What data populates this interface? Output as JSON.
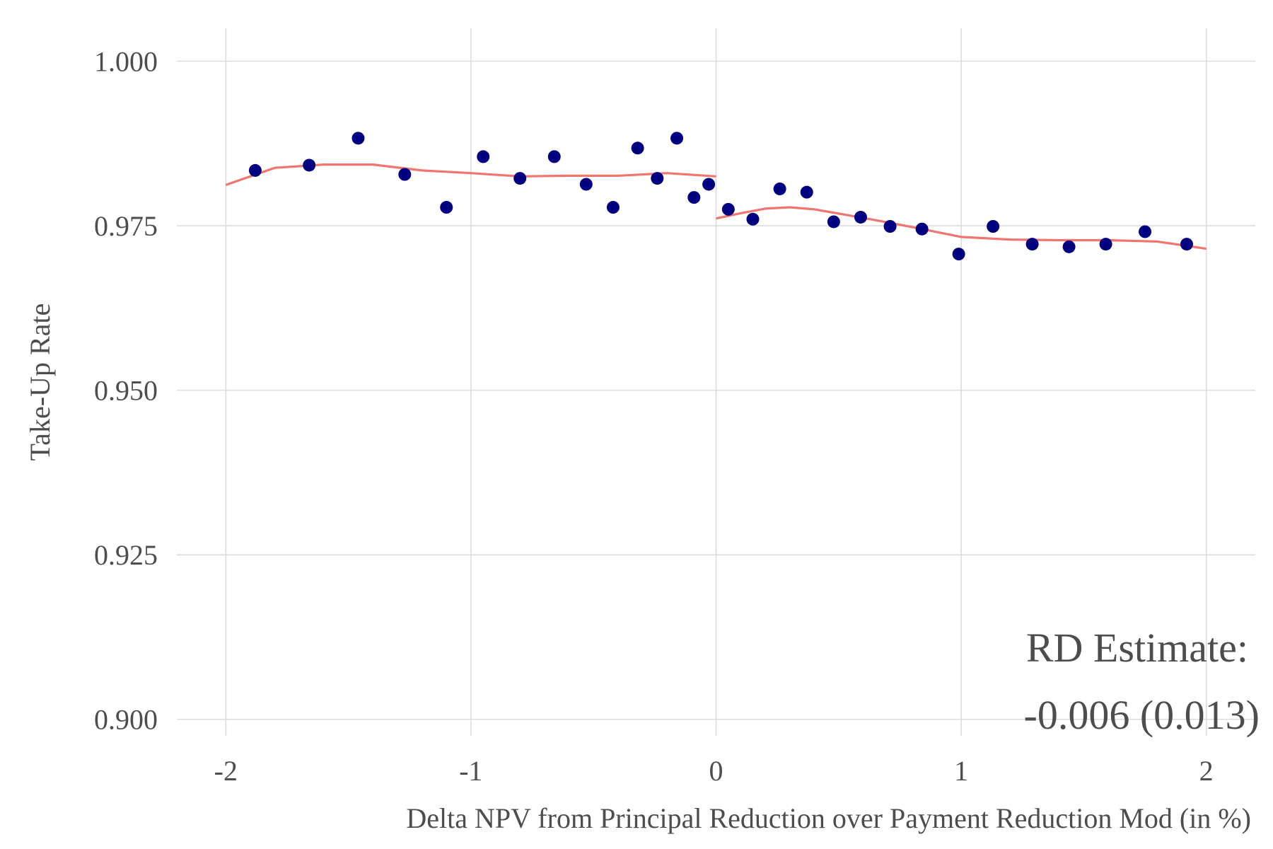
{
  "chart_data": {
    "type": "scatter",
    "title": "",
    "xlabel": "Delta NPV from Principal Reduction over Payment Reduction Mod (in %)",
    "ylabel": "Take-Up Rate",
    "xlim": [
      -2.2,
      2.2
    ],
    "ylim": [
      0.8975,
      1.005
    ],
    "x_ticks": [
      -2,
      -1,
      0,
      1,
      2
    ],
    "x_tick_labels": [
      "-2",
      "-1",
      "0",
      "1",
      "2"
    ],
    "y_ticks": [
      0.9,
      0.925,
      0.95,
      0.975,
      1.0
    ],
    "y_tick_labels": [
      "0.900",
      "0.925",
      "0.950",
      "0.975",
      "1.000"
    ],
    "grid": true,
    "colors": {
      "points": "#000080",
      "fit": "#f07470",
      "grid": "#dcdcdc",
      "text": "#4d4d4d"
    },
    "points": {
      "x": [
        -1.88,
        -1.66,
        -1.46,
        -1.27,
        -1.1,
        -0.95,
        -0.8,
        -0.66,
        -0.53,
        -0.42,
        -0.32,
        -0.24,
        -0.16,
        -0.09,
        -0.03,
        0.05,
        0.15,
        0.26,
        0.37,
        0.48,
        0.59,
        0.71,
        0.84,
        0.99,
        1.13,
        1.29,
        1.44,
        1.59,
        1.75,
        1.92
      ],
      "y": [
        0.9834,
        0.9842,
        0.9883,
        0.9828,
        0.9778,
        0.9855,
        0.9822,
        0.9855,
        0.9813,
        0.9778,
        0.9868,
        0.9822,
        0.9883,
        0.9793,
        0.9813,
        0.9775,
        0.976,
        0.9806,
        0.9801,
        0.9756,
        0.9763,
        0.9749,
        0.9745,
        0.9707,
        0.9749,
        0.9722,
        0.9718,
        0.9722,
        0.9741,
        0.9722
      ]
    },
    "fit_left": {
      "x": [
        -2.0,
        -1.8,
        -1.6,
        -1.4,
        -1.2,
        -1.0,
        -0.8,
        -0.6,
        -0.4,
        -0.2,
        0.0
      ],
      "y": [
        0.9812,
        0.9838,
        0.9843,
        0.9843,
        0.9834,
        0.983,
        0.9825,
        0.9826,
        0.9826,
        0.983,
        0.9825
      ]
    },
    "fit_right": {
      "x": [
        0.0,
        0.1,
        0.2,
        0.3,
        0.4,
        0.6,
        0.8,
        1.0,
        1.2,
        1.4,
        1.6,
        1.8,
        2.0
      ],
      "y": [
        0.9761,
        0.9769,
        0.9776,
        0.9778,
        0.9775,
        0.9762,
        0.9748,
        0.9733,
        0.9729,
        0.9728,
        0.9728,
        0.9726,
        0.9715
      ]
    },
    "annotation": {
      "line1": "RD Estimate:",
      "line2": "-0.006 (0.013)"
    }
  }
}
